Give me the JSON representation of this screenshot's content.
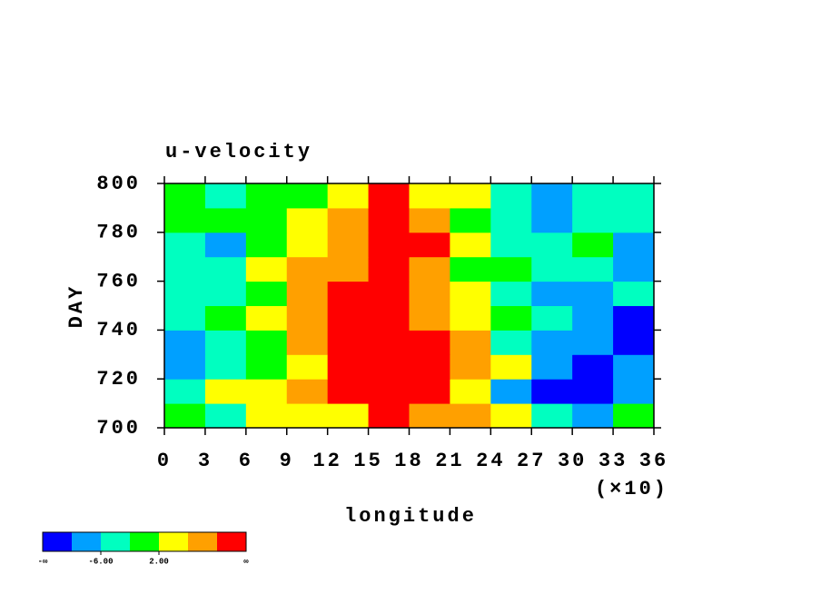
{
  "chart_data": {
    "type": "heatmap",
    "title": "u-velocity",
    "x_label": "longitude",
    "y_label": "DAY",
    "x_multiplier": "(×10)",
    "x": [
      15,
      45,
      75,
      105,
      135,
      165,
      195,
      225,
      255,
      285,
      315,
      345
    ],
    "y": [
      705,
      715,
      725,
      735,
      745,
      755,
      765,
      775,
      785,
      795
    ],
    "z": [
      [
        0,
        -3,
        4,
        3,
        5,
        12,
        6,
        8,
        3,
        -4,
        -8,
        -2
      ],
      [
        -4,
        3,
        4,
        6,
        12,
        14,
        10,
        4,
        -8,
        -12,
        -12,
        -9
      ],
      [
        -7,
        -3,
        1,
        5,
        12,
        11,
        13,
        6,
        3,
        -9,
        -12,
        -10
      ],
      [
        -9,
        -5,
        -1,
        8,
        13,
        12,
        11,
        7,
        -3,
        -8,
        -10,
        -11
      ],
      [
        -5,
        -2,
        3,
        9,
        12,
        14,
        8,
        3,
        -1,
        -6,
        -9,
        -12
      ],
      [
        -6,
        -3,
        0,
        7,
        11,
        13,
        9,
        2,
        -4,
        -7,
        -8,
        -6
      ],
      [
        -3,
        -6,
        2,
        6,
        9,
        12,
        8,
        1,
        -2,
        -5,
        -4,
        -7
      ],
      [
        -4,
        -7,
        0,
        4,
        7,
        13,
        10,
        3,
        -3,
        -6,
        -2,
        -8
      ],
      [
        -2,
        1,
        -1,
        3,
        8,
        12,
        9,
        0,
        -4,
        -8,
        -3,
        -5
      ],
      [
        -1,
        -3,
        0,
        -2,
        4,
        12,
        5,
        2,
        -5,
        -9,
        -6,
        -4
      ]
    ],
    "xlim": [
      0,
      360
    ],
    "xticks": [
      {
        "value": 0,
        "label": "0"
      },
      {
        "value": 30,
        "label": "3"
      },
      {
        "value": 60,
        "label": "6"
      },
      {
        "value": 90,
        "label": "9"
      },
      {
        "value": 120,
        "label": "12"
      },
      {
        "value": 150,
        "label": "15"
      },
      {
        "value": 180,
        "label": "18"
      },
      {
        "value": 210,
        "label": "21"
      },
      {
        "value": 240,
        "label": "24"
      },
      {
        "value": 270,
        "label": "27"
      },
      {
        "value": 300,
        "label": "30"
      },
      {
        "value": 330,
        "label": "33"
      },
      {
        "value": 360,
        "label": "36"
      }
    ],
    "ylim": [
      700,
      800
    ],
    "yticks": [
      700,
      720,
      740,
      760,
      780,
      800
    ],
    "colorbar": {
      "colors": [
        "#0000ff",
        "#00a0ff",
        "#00ffc0",
        "#00ff00",
        "#ffff00",
        "#ffa000",
        "#ff0000"
      ],
      "levels": [
        -10,
        -6,
        -2,
        2,
        6,
        10
      ],
      "ticks": [
        {
          "value": -6,
          "label": "-6.00"
        },
        {
          "value": 2,
          "label": "2.00"
        }
      ],
      "low_label": "-∞",
      "high_label": "∞"
    }
  }
}
